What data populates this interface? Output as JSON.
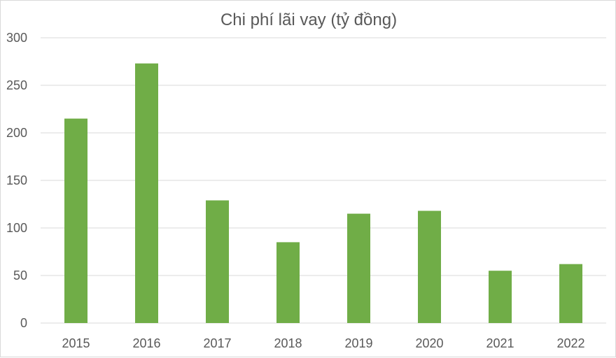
{
  "chart_data": {
    "type": "bar",
    "title": "Chi phí lãi vay (tỷ đồng)",
    "categories": [
      "2015",
      "2016",
      "2017",
      "2018",
      "2019",
      "2020",
      "2021",
      "2022"
    ],
    "values": [
      215,
      273,
      129,
      85,
      115,
      118,
      55,
      62
    ],
    "xlabel": "",
    "ylabel": "",
    "ylim": [
      0,
      300
    ],
    "yticks": [
      "0",
      "50",
      "100",
      "150",
      "200",
      "250",
      "300"
    ],
    "grid": true,
    "bar_color": "#70ad47",
    "grid_color": "#d9d9d9",
    "text_color": "#595959"
  }
}
